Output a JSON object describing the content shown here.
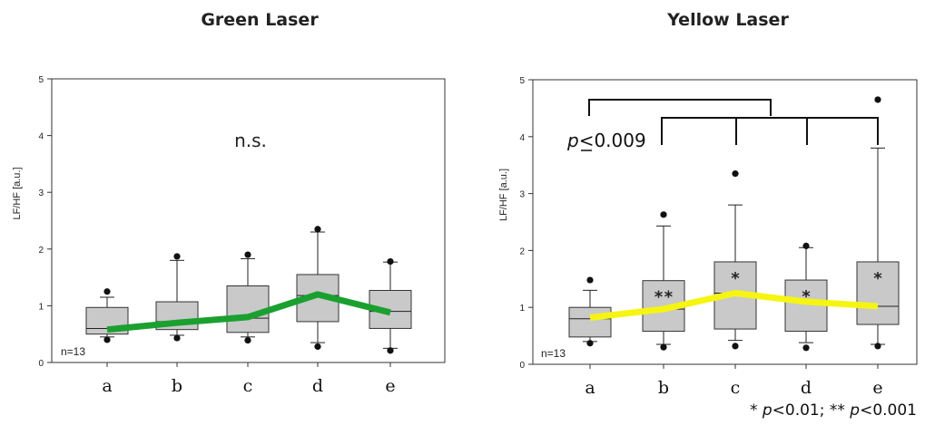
{
  "chart_data": [
    {
      "type": "box",
      "title": "Green Laser",
      "ylabel": "LF/HF [a.u.]",
      "xlabel": "",
      "ylim": [
        0,
        5
      ],
      "yticks": [
        "0",
        "1",
        "2",
        "3",
        "4",
        "5"
      ],
      "categories": [
        "a",
        "b",
        "c",
        "d",
        "e"
      ],
      "n_label": "n=13",
      "annotation": "n.s.",
      "line_color": "#1aa02f",
      "boxes": [
        {
          "category": "a",
          "q1": 0.5,
          "median": 0.6,
          "q3": 0.97,
          "whisker_low": 0.45,
          "whisker_high": 1.15,
          "outliers": [
            1.25,
            0.4
          ]
        },
        {
          "category": "b",
          "q1": 0.58,
          "median": 0.72,
          "q3": 1.07,
          "whisker_low": 0.48,
          "whisker_high": 1.8,
          "outliers": [
            1.87,
            0.43
          ]
        },
        {
          "category": "c",
          "q1": 0.53,
          "median": 0.78,
          "q3": 1.35,
          "whisker_low": 0.45,
          "whisker_high": 1.83,
          "outliers": [
            1.9,
            0.39
          ]
        },
        {
          "category": "d",
          "q1": 0.72,
          "median": 1.18,
          "q3": 1.55,
          "whisker_low": 0.35,
          "whisker_high": 2.3,
          "outliers": [
            2.35,
            0.28
          ]
        },
        {
          "category": "e",
          "q1": 0.6,
          "median": 0.9,
          "q3": 1.27,
          "whisker_low": 0.25,
          "whisker_high": 1.77,
          "outliers": [
            1.78,
            0.21
          ]
        }
      ],
      "line_values": [
        0.58,
        0.7,
        0.8,
        1.2,
        0.88
      ]
    },
    {
      "type": "box",
      "title": "Yellow Laser",
      "ylabel": "LF/HF [a.u.]",
      "xlabel": "",
      "ylim": [
        0,
        5
      ],
      "yticks": [
        "0",
        "1",
        "2",
        "3",
        "4",
        "5"
      ],
      "categories": [
        "a",
        "b",
        "c",
        "d",
        "e"
      ],
      "n_label": "n=13",
      "line_color": "#f5f511",
      "significance_text": {
        "p": "p",
        "rest": "<0.009"
      },
      "footnote": {
        "part1": "* ",
        "p1": "p",
        "mid": "<0.01; ** ",
        "p2": "p",
        "end": "<0.001"
      },
      "box_stars": [
        "",
        "**",
        "*",
        "*",
        "*"
      ],
      "boxes": [
        {
          "category": "a",
          "q1": 0.48,
          "median": 0.8,
          "q3": 1.0,
          "whisker_low": 0.4,
          "whisker_high": 1.3,
          "outliers": [
            1.48,
            0.37
          ]
        },
        {
          "category": "b",
          "q1": 0.58,
          "median": 0.97,
          "q3": 1.47,
          "whisker_low": 0.35,
          "whisker_high": 2.43,
          "outliers": [
            2.63,
            0.3
          ]
        },
        {
          "category": "c",
          "q1": 0.62,
          "median": 1.25,
          "q3": 1.8,
          "whisker_low": 0.42,
          "whisker_high": 2.8,
          "outliers": [
            3.35,
            0.32
          ]
        },
        {
          "category": "d",
          "q1": 0.58,
          "median": 1.1,
          "q3": 1.48,
          "whisker_low": 0.38,
          "whisker_high": 2.05,
          "outliers": [
            2.08,
            0.29
          ]
        },
        {
          "category": "e",
          "q1": 0.7,
          "median": 1.02,
          "q3": 1.8,
          "whisker_low": 0.35,
          "whisker_high": 3.8,
          "outliers": [
            4.65,
            0.32
          ]
        }
      ],
      "line_values": [
        0.82,
        0.97,
        1.25,
        1.1,
        1.02
      ]
    }
  ]
}
